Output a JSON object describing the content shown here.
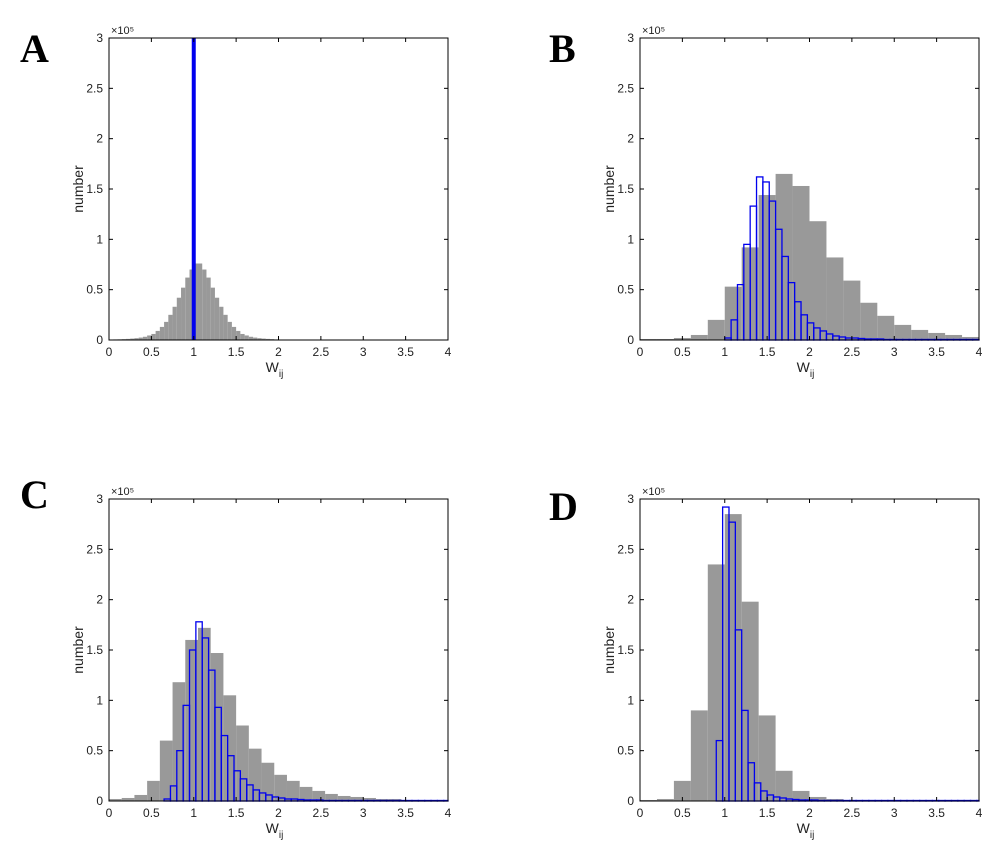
{
  "colors": {
    "gray_bars": "#999999",
    "blue_bars": "#0000ee",
    "axis": "#000000"
  },
  "panels": [
    {
      "letter": "A",
      "ylabel": "number",
      "xlabel_main": "W",
      "xlabel_sub": "ij",
      "y_multiplier": "×10⁵"
    },
    {
      "letter": "B",
      "ylabel": "number",
      "xlabel_main": "W",
      "xlabel_sub": "ij",
      "y_multiplier": "×10⁵"
    },
    {
      "letter": "C",
      "ylabel": "number",
      "xlabel_main": "W",
      "xlabel_sub": "ij",
      "y_multiplier": "×10⁵"
    },
    {
      "letter": "D",
      "ylabel": "number",
      "xlabel_main": "W",
      "xlabel_sub": "ij",
      "y_multiplier": "×10⁵"
    }
  ],
  "chart_data": [
    {
      "type": "bar",
      "panel": "A",
      "xlabel": "W_ij",
      "ylabel": "number",
      "y_multiplier": "×10⁵",
      "xlim": [
        0,
        4
      ],
      "ylim": [
        0,
        3
      ],
      "xticks": [
        "0",
        "0.5",
        "1",
        "1.5",
        "2",
        "2.5",
        "3",
        "3.5",
        "4"
      ],
      "yticks": [
        "0",
        "0.5",
        "1",
        "1.5",
        "2",
        "2.5",
        "3"
      ],
      "grid": false,
      "series": [
        {
          "style": "filled-gray",
          "bin_edges_start": 0.0,
          "bin_width": 0.05,
          "values": [
            0.005,
            0.006,
            0.007,
            0.009,
            0.011,
            0.014,
            0.018,
            0.024,
            0.032,
            0.045,
            0.06,
            0.09,
            0.13,
            0.18,
            0.25,
            0.33,
            0.42,
            0.52,
            0.62,
            0.7,
            0.76,
            0.76,
            0.7,
            0.62,
            0.52,
            0.42,
            0.33,
            0.25,
            0.18,
            0.13,
            0.09,
            0.06,
            0.045,
            0.032,
            0.024,
            0.018,
            0.014,
            0.011,
            0.009,
            0.006
          ]
        },
        {
          "style": "line-blue",
          "x": 1.0,
          "value": 3.0
        }
      ]
    },
    {
      "type": "bar",
      "panel": "B",
      "xlabel": "W_ij",
      "ylabel": "number",
      "y_multiplier": "×10⁵",
      "xlim": [
        0,
        4
      ],
      "ylim": [
        0,
        3
      ],
      "xticks": [
        "0",
        "0.5",
        "1",
        "1.5",
        "2",
        "2.5",
        "3",
        "3.5",
        "4"
      ],
      "yticks": [
        "0",
        "0.5",
        "1",
        "1.5",
        "2",
        "2.5",
        "3"
      ],
      "grid": false,
      "series": [
        {
          "style": "filled-gray",
          "bin_edges_start": 0.0,
          "bin_width": 0.2,
          "values": [
            0.01,
            0.01,
            0.02,
            0.05,
            0.2,
            0.53,
            0.92,
            1.44,
            1.65,
            1.53,
            1.18,
            0.82,
            0.59,
            0.37,
            0.24,
            0.15,
            0.1,
            0.07,
            0.05,
            0.03
          ]
        },
        {
          "style": "outline-blue",
          "bin_edges_start": 1.0,
          "bin_width": 0.075,
          "values": [
            0.02,
            0.2,
            0.55,
            0.95,
            1.33,
            1.62,
            1.57,
            1.38,
            1.1,
            0.83,
            0.57,
            0.38,
            0.25,
            0.17,
            0.12,
            0.09,
            0.06,
            0.04,
            0.03,
            0.02,
            0.02,
            0.015,
            0.01,
            0.01,
            0.01,
            0.005,
            0.005,
            0.005,
            0.005,
            0.005,
            0.005,
            0.005,
            0.005,
            0.005,
            0.005,
            0.005,
            0.005,
            0.005,
            0.005,
            0.005
          ]
        }
      ]
    },
    {
      "type": "bar",
      "panel": "C",
      "xlabel": "W_ij",
      "ylabel": "number",
      "y_multiplier": "×10⁵",
      "xlim": [
        0,
        4
      ],
      "ylim": [
        0,
        3
      ],
      "xticks": [
        "0",
        "0.5",
        "1",
        "1.5",
        "2",
        "2.5",
        "3",
        "3.5",
        "4"
      ],
      "yticks": [
        "0",
        "0.5",
        "1",
        "1.5",
        "2",
        "2.5",
        "3"
      ],
      "grid": false,
      "series": [
        {
          "style": "filled-gray",
          "bin_edges_start": 0.0,
          "bin_width": 0.15,
          "values": [
            0.02,
            0.03,
            0.06,
            0.2,
            0.6,
            1.18,
            1.6,
            1.72,
            1.47,
            1.05,
            0.75,
            0.52,
            0.38,
            0.26,
            0.2,
            0.14,
            0.1,
            0.07,
            0.05,
            0.04,
            0.03,
            0.02,
            0.02,
            0.01,
            0.01,
            0.01,
            0.01
          ]
        },
        {
          "style": "outline-blue",
          "bin_edges_start": 0.65,
          "bin_width": 0.075,
          "values": [
            0.02,
            0.15,
            0.5,
            0.95,
            1.5,
            1.78,
            1.62,
            1.3,
            0.93,
            0.65,
            0.45,
            0.3,
            0.22,
            0.16,
            0.11,
            0.08,
            0.06,
            0.04,
            0.03,
            0.02,
            0.02,
            0.015,
            0.01,
            0.01,
            0.01,
            0.005,
            0.005,
            0.005,
            0.005,
            0.005,
            0.005,
            0.005,
            0.005,
            0.005,
            0.005,
            0.005,
            0.005,
            0.005,
            0.005,
            0.005,
            0.005,
            0.005,
            0.005,
            0.005,
            0.005
          ]
        }
      ]
    },
    {
      "type": "bar",
      "panel": "D",
      "xlabel": "W_ij",
      "ylabel": "number",
      "y_multiplier": "×10⁵",
      "xlim": [
        0,
        4
      ],
      "ylim": [
        0,
        3
      ],
      "xticks": [
        "0",
        "0.5",
        "1",
        "1.5",
        "2",
        "2.5",
        "3",
        "3.5",
        "4"
      ],
      "yticks": [
        "0",
        "0.5",
        "1",
        "1.5",
        "2",
        "2.5",
        "3"
      ],
      "grid": false,
      "series": [
        {
          "style": "filled-gray",
          "bin_edges_start": 0.0,
          "bin_width": 0.2,
          "values": [
            0.01,
            0.02,
            0.2,
            0.9,
            2.35,
            2.85,
            1.98,
            0.85,
            0.3,
            0.1,
            0.04,
            0.02,
            0.01,
            0.01,
            0.01,
            0.005,
            0.005,
            0.005,
            0.005,
            0.005
          ]
        },
        {
          "style": "outline-blue",
          "bin_edges_start": 0.9,
          "bin_width": 0.075,
          "values": [
            0.6,
            2.92,
            2.77,
            1.7,
            0.9,
            0.38,
            0.18,
            0.1,
            0.06,
            0.04,
            0.03,
            0.02,
            0.015,
            0.01,
            0.01,
            0.01,
            0.005,
            0.005,
            0.005,
            0.005,
            0.005,
            0.005,
            0.005,
            0.005,
            0.005,
            0.005,
            0.005,
            0.005,
            0.005,
            0.005,
            0.005,
            0.005,
            0.005,
            0.005,
            0.005,
            0.005,
            0.005,
            0.005,
            0.005,
            0.005,
            0.005,
            0.005
          ]
        }
      ]
    }
  ]
}
